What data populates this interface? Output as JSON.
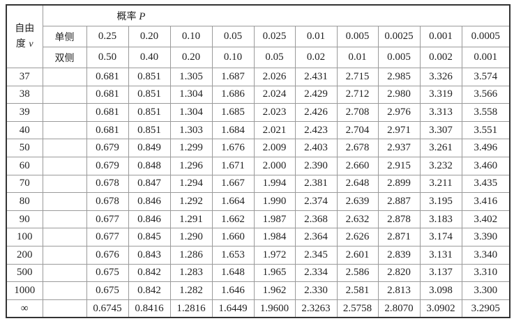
{
  "header": {
    "dof_label_line1": "自由",
    "dof_label_line2": "度",
    "dof_symbol": "v",
    "prob_label": "概率",
    "prob_symbol": "P",
    "one_sided_label": "单侧",
    "two_sided_label": "双侧",
    "one_sided": [
      "0.25",
      "0.20",
      "0.10",
      "0.05",
      "0.025",
      "0.01",
      "0.005",
      "0.0025",
      "0.001",
      "0.0005"
    ],
    "two_sided": [
      "0.50",
      "0.40",
      "0.20",
      "0.10",
      "0.05",
      "0.02",
      "0.01",
      "0.005",
      "0.002",
      "0.001"
    ]
  },
  "rows": [
    {
      "v": "37",
      "values": [
        "0.681",
        "0.851",
        "1.305",
        "1.687",
        "2.026",
        "2.431",
        "2.715",
        "2.985",
        "3.326",
        "3.574"
      ]
    },
    {
      "v": "38",
      "values": [
        "0.681",
        "0.851",
        "1.304",
        "1.686",
        "2.024",
        "2.429",
        "2.712",
        "2.980",
        "3.319",
        "3.566"
      ]
    },
    {
      "v": "39",
      "values": [
        "0.681",
        "0.851",
        "1.304",
        "1.685",
        "2.023",
        "2.426",
        "2.708",
        "2.976",
        "3.313",
        "3.558"
      ]
    },
    {
      "v": "40",
      "values": [
        "0.681",
        "0.851",
        "1.303",
        "1.684",
        "2.021",
        "2.423",
        "2.704",
        "2.971",
        "3.307",
        "3.551"
      ]
    },
    {
      "v": "50",
      "values": [
        "0.679",
        "0.849",
        "1.299",
        "1.676",
        "2.009",
        "2.403",
        "2.678",
        "2.937",
        "3.261",
        "3.496"
      ]
    },
    {
      "v": "60",
      "values": [
        "0.679",
        "0.848",
        "1.296",
        "1.671",
        "2.000",
        "2.390",
        "2.660",
        "2.915",
        "3.232",
        "3.460"
      ]
    },
    {
      "v": "70",
      "values": [
        "0.678",
        "0.847",
        "1.294",
        "1.667",
        "1.994",
        "2.381",
        "2.648",
        "2.899",
        "3.211",
        "3.435"
      ]
    },
    {
      "v": "80",
      "values": [
        "0.678",
        "0.846",
        "1.292",
        "1.664",
        "1.990",
        "2.374",
        "2.639",
        "2.887",
        "3.195",
        "3.416"
      ]
    },
    {
      "v": "90",
      "values": [
        "0.677",
        "0.846",
        "1.291",
        "1.662",
        "1.987",
        "2.368",
        "2.632",
        "2.878",
        "3.183",
        "3.402"
      ]
    },
    {
      "v": "100",
      "values": [
        "0.677",
        "0.845",
        "1.290",
        "1.660",
        "1.984",
        "2.364",
        "2.626",
        "2.871",
        "3.174",
        "3.390"
      ]
    },
    {
      "v": "200",
      "values": [
        "0.676",
        "0.843",
        "1.286",
        "1.653",
        "1.972",
        "2.345",
        "2.601",
        "2.839",
        "3.131",
        "3.340"
      ]
    },
    {
      "v": "500",
      "values": [
        "0.675",
        "0.842",
        "1.283",
        "1.648",
        "1.965",
        "2.334",
        "2.586",
        "2.820",
        "3.137",
        "3.310"
      ]
    },
    {
      "v": "1000",
      "values": [
        "0.675",
        "0.842",
        "1.282",
        "1.646",
        "1.962",
        "2.330",
        "2.581",
        "2.813",
        "3.098",
        "3.300"
      ]
    },
    {
      "v": "∞",
      "values": [
        "0.6745",
        "0.8416",
        "1.2816",
        "1.6449",
        "1.9600",
        "2.3263",
        "2.5758",
        "2.8070",
        "3.0902",
        "3.2905"
      ]
    }
  ]
}
